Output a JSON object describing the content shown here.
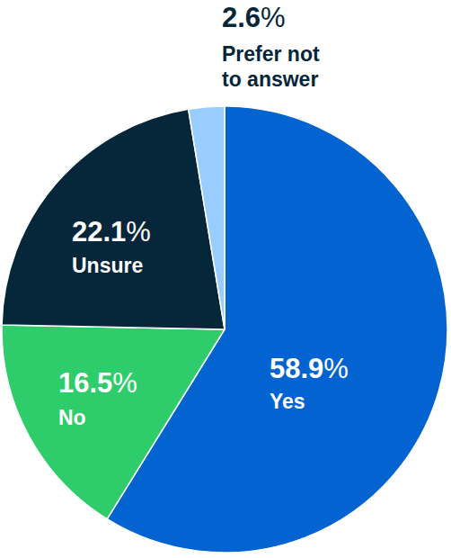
{
  "chart_data": {
    "type": "pie",
    "categories": [
      "Yes",
      "No",
      "Unsure",
      "Prefer not to answer"
    ],
    "values": [
      58.9,
      16.5,
      22.1,
      2.6
    ],
    "value_labels": [
      "58.9%",
      "16.5%",
      "22.1%",
      "2.6%"
    ],
    "colors": [
      "#0263d1",
      "#2ecc6b",
      "#06263a",
      "#99ccff"
    ],
    "data_labels": true
  }
}
